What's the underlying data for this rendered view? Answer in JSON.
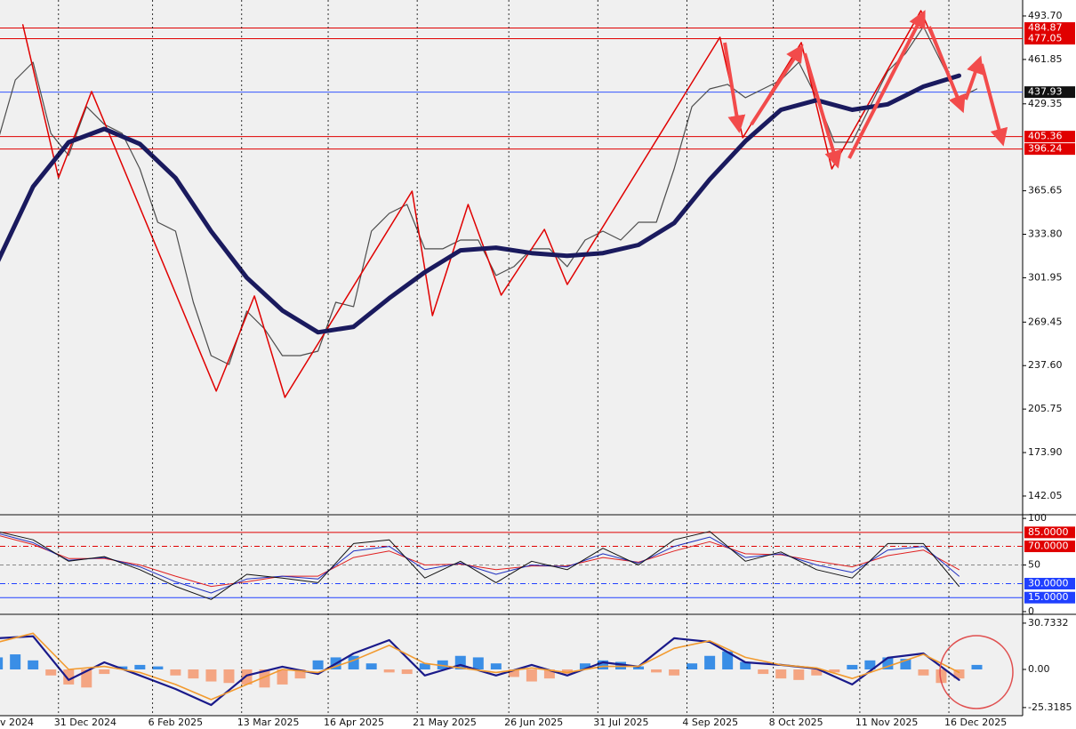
{
  "chart_data": [
    {
      "type": "line",
      "xlim": [
        "2024-12-08",
        "2026-01-14"
      ],
      "ylim": [
        129,
        505.4
      ],
      "yticks": [
        {
          "value": 493.7,
          "label": "493.70"
        },
        461.85,
        429.35,
        365.65,
        {
          "value": 333.8,
          "label": "333.80"
        },
        301.95,
        269.45,
        {
          "value": 237.6,
          "label": "237.60"
        },
        205.75,
        {
          "value": 173.9,
          "label": "173.90"
        },
        142.05
      ],
      "levels": [
        {
          "value": 484.87,
          "color": "#e00000",
          "tag_color": "#e00000"
        },
        {
          "value": 477.05,
          "color": "#e00000",
          "tag_color": "#e00000"
        },
        {
          "value": 405.36,
          "color": "#e00000",
          "tag_color": "#e00000"
        },
        {
          "value": 396.24,
          "color": "#e00000",
          "tag_color": "#e00000"
        },
        {
          "value": 437.93,
          "color": "#3355ff",
          "tag_color": "#111111"
        }
      ],
      "series": [
        {
          "color": "#4d4d4d",
          "width": 1.2,
          "x": [
            "2024-12-07",
            "2024-12-14",
            "2024-12-21",
            "2024-12-28",
            "2025-01-04",
            "2025-01-11",
            "2025-01-18",
            "2025-01-25",
            "2025-02-01",
            "2025-02-08",
            "2025-02-15",
            "2025-02-22",
            "2025-03-01",
            "2025-03-08",
            "2025-03-15",
            "2025-03-22",
            "2025-03-29",
            "2025-04-05",
            "2025-04-12",
            "2025-04-19",
            "2025-04-26",
            "2025-05-03",
            "2025-05-10",
            "2025-05-17",
            "2025-05-24",
            "2025-05-31",
            "2025-06-07",
            "2025-06-14",
            "2025-06-21",
            "2025-06-28",
            "2025-07-05",
            "2025-07-12",
            "2025-07-19",
            "2025-07-26",
            "2025-08-02",
            "2025-08-09",
            "2025-08-16",
            "2025-08-23",
            "2025-08-30",
            "2025-09-06",
            "2025-09-13",
            "2025-09-20",
            "2025-09-27",
            "2025-10-04",
            "2025-10-11",
            "2025-10-18",
            "2025-10-25",
            "2025-11-01",
            "2025-11-08",
            "2025-11-15",
            "2025-11-22",
            "2025-11-29",
            "2025-12-06",
            "2025-12-13",
            "2025-12-20",
            "2025-12-27"
          ],
          "values": [
            401.2,
            446.8,
            459.8,
            407.7,
            391.5,
            427.3,
            414.3,
            407.7,
            381.7,
            342.6,
            336.1,
            284.0,
            244.9,
            238.4,
            277.5,
            264.5,
            244.9,
            244.9,
            248.2,
            284.0,
            280.8,
            336.1,
            349.1,
            355.6,
            323.1,
            323.1,
            329.6,
            329.6,
            303.6,
            310.1,
            323.1,
            323.1,
            310.1,
            329.6,
            336.1,
            329.6,
            342.6,
            342.6,
            381.7,
            427.3,
            440.3,
            443.6,
            433.8,
            440.3,
            446.8,
            459.8,
            433.8,
            401.2,
            401.2,
            427.3,
            453.3,
            466.3,
            485.9,
            459.8,
            433.8,
            440.3
          ]
        },
        {
          "color": "#e00000",
          "width": 1.5,
          "x": [
            "2024-12-17",
            "2024-12-31",
            "2025-01-13",
            "2025-03-03",
            "2025-03-18",
            "2025-03-30",
            "2025-05-19",
            "2025-05-27",
            "2025-06-10",
            "2025-06-23",
            "2025-07-10",
            "2025-07-19",
            "2025-09-17",
            "2025-09-26",
            "2025-10-19",
            "2025-10-31",
            "2025-12-05",
            "2025-12-21"
          ],
          "values": [
            487.2,
            375.2,
            438.4,
            218.9,
            288.6,
            214.3,
            365.4,
            274.2,
            355.6,
            289.2,
            337.4,
            297.0,
            478.1,
            404.5,
            474.2,
            381.7,
            497.6,
            427.3
          ]
        },
        {
          "color": "#1a1a5e",
          "width": 5,
          "x": [
            "2024-12-07",
            "2024-12-21",
            "2025-01-04",
            "2025-01-18",
            "2025-02-01",
            "2025-02-15",
            "2025-03-01",
            "2025-03-15",
            "2025-03-29",
            "2025-04-12",
            "2025-04-26",
            "2025-05-10",
            "2025-05-24",
            "2025-06-07",
            "2025-06-21",
            "2025-07-05",
            "2025-07-19",
            "2025-08-02",
            "2025-08-16",
            "2025-08-30",
            "2025-09-13",
            "2025-09-27",
            "2025-10-11",
            "2025-10-25",
            "2025-11-08",
            "2025-11-22",
            "2025-12-06",
            "2025-12-20"
          ],
          "values": [
            313.3,
            368.7,
            401.2,
            411.0,
            400.0,
            375,
            336,
            302,
            278,
            262,
            266,
            287,
            306,
            322,
            324,
            320,
            318,
            320,
            326,
            342,
            374,
            402,
            425,
            432,
            425,
            429,
            442,
            450
          ]
        }
      ]
    },
    {
      "type": "line",
      "xlim": [
        "2024-12-08",
        "2026-01-14"
      ],
      "ylim": [
        -1,
        102
      ],
      "yticks": [
        100,
        50,
        0
      ],
      "levels": [
        {
          "value": 85,
          "label": "85.0000",
          "color": "#e00000",
          "style": "solid",
          "tag_color": "#e00000"
        },
        {
          "value": 70,
          "label": "70.0000",
          "color": "#e00000",
          "style": "dashdot",
          "tag_color": "#e00000"
        },
        {
          "value": 50,
          "color": "#888888",
          "style": "dash"
        },
        {
          "value": 30,
          "label": "30.0000",
          "color": "#2040ff",
          "style": "dashdot",
          "tag_color": "#2040ff"
        },
        {
          "value": 15,
          "label": "15.0000",
          "color": "#2040ff",
          "style": "solid",
          "tag_color": "#2040ff"
        }
      ],
      "series": [
        {
          "color": "#e02020",
          "width": 1,
          "x": [
            "2024-12-07",
            "2024-12-21",
            "2025-01-04",
            "2025-01-18",
            "2025-02-01",
            "2025-02-15",
            "2025-03-01",
            "2025-03-15",
            "2025-03-29",
            "2025-04-12",
            "2025-04-26",
            "2025-05-10",
            "2025-05-24",
            "2025-06-07",
            "2025-06-21",
            "2025-07-05",
            "2025-07-19",
            "2025-08-02",
            "2025-08-16",
            "2025-08-30",
            "2025-09-13",
            "2025-09-27",
            "2025-10-11",
            "2025-10-25",
            "2025-11-08",
            "2025-11-22",
            "2025-12-06",
            "2025-12-20"
          ],
          "values": [
            82,
            72,
            57,
            57,
            50,
            38,
            27,
            32,
            38,
            38,
            58,
            65,
            50,
            51,
            45,
            49,
            49,
            58,
            53,
            65,
            75,
            62,
            61,
            54,
            48,
            60,
            66,
            45
          ]
        },
        {
          "color": "#2030c0",
          "width": 1,
          "x": [
            "2024-12-07",
            "2024-12-21",
            "2025-01-04",
            "2025-01-18",
            "2025-02-01",
            "2025-02-15",
            "2025-03-01",
            "2025-03-15",
            "2025-03-29",
            "2025-04-12",
            "2025-04-26",
            "2025-05-10",
            "2025-05-24",
            "2025-06-07",
            "2025-06-21",
            "2025-07-05",
            "2025-07-19",
            "2025-08-02",
            "2025-08-16",
            "2025-08-30",
            "2025-09-13",
            "2025-09-27",
            "2025-10-11",
            "2025-10-25",
            "2025-11-08",
            "2025-11-22",
            "2025-12-06",
            "2025-12-20"
          ],
          "values": [
            84,
            74,
            55,
            58,
            48,
            32,
            20,
            35,
            38,
            35,
            65,
            70,
            45,
            52,
            40,
            50,
            48,
            62,
            52,
            70,
            80,
            58,
            62,
            50,
            42,
            66,
            70,
            38
          ]
        },
        {
          "color": "#111111",
          "width": 1,
          "x": [
            "2024-12-07",
            "2024-12-21",
            "2025-01-04",
            "2025-01-18",
            "2025-02-01",
            "2025-02-15",
            "2025-03-01",
            "2025-03-15",
            "2025-03-29",
            "2025-04-12",
            "2025-04-26",
            "2025-05-10",
            "2025-05-24",
            "2025-06-07",
            "2025-06-21",
            "2025-07-05",
            "2025-07-19",
            "2025-08-02",
            "2025-08-16",
            "2025-08-30",
            "2025-09-13",
            "2025-09-27",
            "2025-10-11",
            "2025-10-25",
            "2025-11-08",
            "2025-11-22",
            "2025-12-06",
            "2025-12-20"
          ],
          "values": [
            86,
            77,
            54,
            59,
            45,
            27,
            13,
            40,
            36,
            31,
            73,
            77,
            36,
            54,
            31,
            54,
            45,
            68,
            50,
            77,
            86,
            54,
            64,
            45,
            36,
            73,
            73,
            27
          ]
        }
      ]
    },
    {
      "type": "combo",
      "xlim": [
        "2024-12-08",
        "2026-01-14"
      ],
      "ylim": [
        -30.7,
        36.0
      ],
      "yticks": [
        30.7332,
        {
          "value": 0,
          "label": "0.00"
        },
        -25.3185
      ],
      "xticks": [
        {
          "value": "2024-11-26",
          "label": "v 2024"
        },
        {
          "value": "2024-12-31",
          "label": "31 Dec 2024"
        },
        {
          "value": "2025-02-06",
          "label": "6 Feb 2025"
        },
        {
          "value": "2025-03-13",
          "label": "13 Mar 2025"
        },
        {
          "value": "2025-04-16",
          "label": "16 Apr 2025"
        },
        {
          "value": "2025-05-21",
          "label": "21 May 2025"
        },
        {
          "value": "2025-06-26",
          "label": "26 Jun 2025"
        },
        {
          "value": "2025-07-31",
          "label": "31 Jul 2025"
        },
        {
          "value": "2025-09-04",
          "label": "4 Sep 2025"
        },
        {
          "value": "2025-10-08",
          "label": "8 Oct 2025"
        },
        {
          "value": "2025-11-11",
          "label": "11 Nov 2025"
        },
        {
          "value": "2025-12-16",
          "label": "16 Dec 2025"
        }
      ],
      "series": [
        {
          "mark": "bar",
          "color": "#3a8ee6",
          "negative_color": "#f4a582",
          "x": [
            "2024-12-07",
            "2024-12-14",
            "2024-12-21",
            "2024-12-28",
            "2025-01-04",
            "2025-01-11",
            "2025-01-18",
            "2025-01-25",
            "2025-02-01",
            "2025-02-08",
            "2025-02-15",
            "2025-02-22",
            "2025-03-01",
            "2025-03-08",
            "2025-03-15",
            "2025-03-22",
            "2025-03-29",
            "2025-04-05",
            "2025-04-12",
            "2025-04-19",
            "2025-04-26",
            "2025-05-03",
            "2025-05-10",
            "2025-05-17",
            "2025-05-24",
            "2025-05-31",
            "2025-06-07",
            "2025-06-14",
            "2025-06-21",
            "2025-06-28",
            "2025-07-05",
            "2025-07-12",
            "2025-07-19",
            "2025-07-26",
            "2025-08-02",
            "2025-08-09",
            "2025-08-16",
            "2025-08-23",
            "2025-08-30",
            "2025-09-06",
            "2025-09-13",
            "2025-09-20",
            "2025-09-27",
            "2025-10-04",
            "2025-10-11",
            "2025-10-18",
            "2025-10-25",
            "2025-11-01",
            "2025-11-08",
            "2025-11-15",
            "2025-11-22",
            "2025-11-29",
            "2025-12-06",
            "2025-12-13",
            "2025-12-20",
            "2025-12-27"
          ],
          "values": [
            8,
            10,
            6,
            -4,
            -10,
            -12,
            -3,
            2,
            3,
            2,
            -4,
            -6,
            -8,
            -9,
            -10,
            -12,
            -10,
            -6,
            6,
            8,
            9,
            4,
            -2,
            -3,
            4,
            6,
            9,
            8,
            4,
            -5,
            -8,
            -6,
            -3,
            4,
            6,
            5,
            2,
            -2,
            -4,
            4,
            9,
            12,
            5,
            -3,
            -6,
            -7,
            -4,
            -2,
            3,
            6,
            8,
            7,
            -4,
            -9,
            -6,
            3
          ]
        },
        {
          "mark": "line",
          "color": "#1a1a8a",
          "width": 2.2,
          "x": [
            "2024-12-07",
            "2024-12-21",
            "2025-01-04",
            "2025-01-18",
            "2025-02-01",
            "2025-02-15",
            "2025-03-01",
            "2025-03-15",
            "2025-03-29",
            "2025-04-12",
            "2025-04-26",
            "2025-05-10",
            "2025-05-24",
            "2025-06-07",
            "2025-06-21",
            "2025-07-05",
            "2025-07-19",
            "2025-08-02",
            "2025-08-16",
            "2025-08-30",
            "2025-09-13",
            "2025-09-27",
            "2025-10-11",
            "2025-10-25",
            "2025-11-08",
            "2025-11-22",
            "2025-12-06",
            "2025-12-20"
          ],
          "values": [
            20.7,
            22,
            -7,
            4.7,
            -4,
            -13,
            -23.6,
            -4,
            1.8,
            -3,
            10.6,
            19.5,
            -4,
            3,
            -4,
            3,
            -4,
            4.7,
            1.8,
            20.7,
            18.3,
            4.7,
            3,
            0.6,
            -10,
            7.7,
            10.6,
            -7
          ]
        },
        {
          "mark": "line",
          "color": "#f29a2e",
          "width": 1.6,
          "x": [
            "2024-12-07",
            "2024-12-21",
            "2025-01-04",
            "2025-01-18",
            "2025-02-01",
            "2025-02-15",
            "2025-03-01",
            "2025-03-15",
            "2025-03-29",
            "2025-04-12",
            "2025-04-26",
            "2025-05-10",
            "2025-05-24",
            "2025-06-07",
            "2025-06-21",
            "2025-07-05",
            "2025-07-19",
            "2025-08-02",
            "2025-08-16",
            "2025-08-30",
            "2025-09-13",
            "2025-09-27",
            "2025-10-11",
            "2025-10-25",
            "2025-11-08",
            "2025-11-22",
            "2025-12-06",
            "2025-12-20"
          ],
          "values": [
            18,
            24,
            0,
            2,
            -2,
            -10,
            -20,
            -10,
            0,
            -2,
            6,
            16,
            4,
            1,
            -2,
            1,
            -2,
            2,
            2,
            14,
            19,
            8,
            3,
            1,
            -6,
            2,
            10,
            -2
          ]
        }
      ]
    }
  ]
}
